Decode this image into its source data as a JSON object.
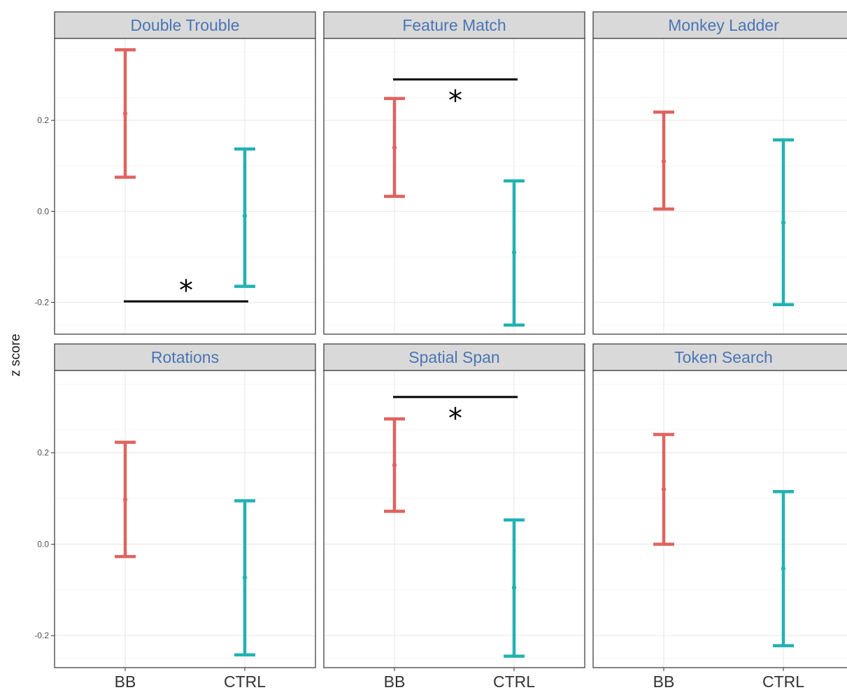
{
  "chart_data": {
    "type": "errorbar",
    "ylabel": "z score",
    "xlabel": "",
    "categories": [
      "BB",
      "CTRL"
    ],
    "ylim": [
      -0.27,
      0.38
    ],
    "y_ticks": [
      -0.2,
      0.0,
      0.2
    ],
    "y_tick_labels": [
      "-0.2",
      "0.0",
      "0.2"
    ],
    "grid": true,
    "colors": {
      "BB": "#e0635f",
      "CTRL": "#22b2b2",
      "strip_bg": "#d9d9d9",
      "strip_text": "#4a75b5",
      "bracket": "#000000",
      "grid": "#ebebeb",
      "border": "#333333"
    },
    "panels": [
      {
        "title": "Double Trouble",
        "groups": [
          {
            "group": "BB",
            "mean": 0.215,
            "lower": 0.075,
            "upper": 0.355
          },
          {
            "group": "CTRL",
            "mean": -0.01,
            "lower": -0.165,
            "upper": 0.137
          }
        ],
        "significance": {
          "label": "*",
          "y": -0.198,
          "placement": "below-bars"
        }
      },
      {
        "title": "Feature Match",
        "groups": [
          {
            "group": "BB",
            "mean": 0.14,
            "lower": 0.033,
            "upper": 0.248
          },
          {
            "group": "CTRL",
            "mean": -0.09,
            "lower": -0.25,
            "upper": 0.067
          }
        ],
        "significance": {
          "label": "*",
          "y": 0.29,
          "placement": "above-bars"
        }
      },
      {
        "title": "Monkey Ladder",
        "groups": [
          {
            "group": "BB",
            "mean": 0.11,
            "lower": 0.005,
            "upper": 0.218
          },
          {
            "group": "CTRL",
            "mean": -0.025,
            "lower": -0.205,
            "upper": 0.157
          }
        ],
        "significance": null
      },
      {
        "title": "Rotations",
        "groups": [
          {
            "group": "BB",
            "mean": 0.098,
            "lower": -0.027,
            "upper": 0.223
          },
          {
            "group": "CTRL",
            "mean": -0.073,
            "lower": -0.242,
            "upper": 0.095
          }
        ],
        "significance": null
      },
      {
        "title": "Spatial Span",
        "groups": [
          {
            "group": "BB",
            "mean": 0.173,
            "lower": 0.072,
            "upper": 0.274
          },
          {
            "group": "CTRL",
            "mean": -0.095,
            "lower": -0.245,
            "upper": 0.053
          }
        ],
        "significance": {
          "label": "*",
          "y": 0.322,
          "placement": "above-bars"
        }
      },
      {
        "title": "Token Search",
        "groups": [
          {
            "group": "BB",
            "mean": 0.12,
            "lower": 0.0,
            "upper": 0.24
          },
          {
            "group": "CTRL",
            "mean": -0.053,
            "lower": -0.222,
            "upper": 0.115
          }
        ],
        "significance": null
      }
    ]
  }
}
